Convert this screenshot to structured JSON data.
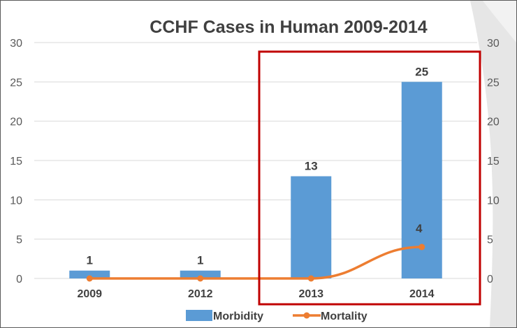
{
  "chart_data": {
    "type": "bar",
    "title": "CCHF Cases in Human 2009-2014",
    "categories": [
      "2009",
      "2012",
      "2013",
      "2014"
    ],
    "series": [
      {
        "name": "Morbidity",
        "type": "bar",
        "values": [
          1,
          1,
          13,
          25
        ],
        "labels": [
          "1",
          "1",
          "13",
          "25"
        ],
        "color": "#5B9BD5"
      },
      {
        "name": "Mortality",
        "type": "line",
        "values": [
          0,
          0,
          0,
          4
        ],
        "labels": [
          "",
          "",
          "",
          "4"
        ],
        "color": "#ED7D31"
      }
    ],
    "ylim": [
      0,
      30
    ],
    "y_ticks": [
      "0",
      "5",
      "10",
      "15",
      "20",
      "25",
      "30"
    ],
    "secondary_ylim": [
      0,
      30
    ],
    "secondary_y_ticks": [
      "0",
      "5",
      "10",
      "15",
      "20",
      "25",
      "30"
    ],
    "grid": true,
    "legend": "bottom",
    "highlight": {
      "categories": [
        "2013",
        "2014"
      ],
      "color": "#C00000"
    }
  }
}
